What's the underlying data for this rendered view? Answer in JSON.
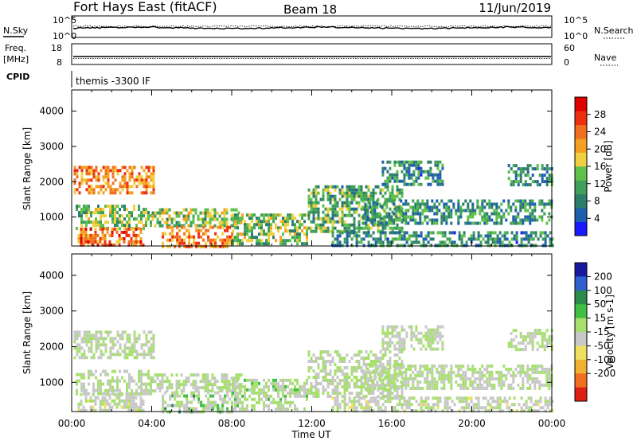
{
  "header": {
    "station": "Fort Hays East (fitACF)",
    "beam": "Beam 18",
    "date": "11/Jun/2019"
  },
  "noise_panel": {
    "left_label": "N.Sky",
    "right_label": "N.Search",
    "left_ticks": [
      "10^5",
      "10^0"
    ],
    "right_ticks": [
      "10^5",
      "10^0"
    ]
  },
  "freq_panel": {
    "left_label_1": "Freq.",
    "left_label_2": "[MHz]",
    "right_label": "Nave",
    "left_ticks": [
      "18",
      "8"
    ],
    "right_ticks": [
      "60",
      "0"
    ]
  },
  "cpid_panel": {
    "label": "CPID",
    "program": "themis -3300 IF"
  },
  "x_axis": {
    "label": "Time UT",
    "ticks": [
      "00:00",
      "04:00",
      "08:00",
      "12:00",
      "16:00",
      "20:00",
      "00:00"
    ]
  },
  "chart_data": [
    {
      "type": "heatmap",
      "title": "",
      "xlabel": "Time UT",
      "ylabel": "Slant Range [km]",
      "x_range_hours": [
        0,
        24
      ],
      "ylim": [
        180,
        4600
      ],
      "y_ticks": [
        1000,
        2000,
        3000,
        4000
      ],
      "colorbar": {
        "label": "Power [dB]",
        "ticks": [
          "4",
          "8",
          "12",
          "16",
          "20",
          "24",
          "28"
        ],
        "colors": [
          "#1a1aff",
          "#1e5fae",
          "#2c7d6a",
          "#3fa05a",
          "#5fc04a",
          "#f0d040",
          "#f5a020",
          "#f07020",
          "#ee3010",
          "#e00000"
        ]
      },
      "echo_regions": [
        {
          "t0": 0.1,
          "t1": 4.1,
          "r0": 1700,
          "r1": 2450,
          "value": 22
        },
        {
          "t0": 0.2,
          "t1": 4.0,
          "r0": 700,
          "r1": 1350,
          "value": 14
        },
        {
          "t0": 0.3,
          "t1": 3.6,
          "r0": 200,
          "r1": 700,
          "value": 24
        },
        {
          "t0": 4.0,
          "t1": 8.5,
          "r0": 750,
          "r1": 1250,
          "value": 15
        },
        {
          "t0": 4.5,
          "t1": 8.0,
          "r0": 200,
          "r1": 750,
          "value": 22
        },
        {
          "t0": 8.0,
          "t1": 11.8,
          "r0": 250,
          "r1": 1100,
          "value": 14
        },
        {
          "t0": 11.8,
          "t1": 16.5,
          "r0": 600,
          "r1": 1900,
          "value": 12
        },
        {
          "t0": 14.5,
          "t1": 24.0,
          "r0": 800,
          "r1": 1500,
          "value": 10
        },
        {
          "t0": 13.0,
          "t1": 24.0,
          "r0": 200,
          "r1": 600,
          "value": 9
        },
        {
          "t0": 15.5,
          "t1": 18.5,
          "r0": 1900,
          "r1": 2600,
          "value": 9
        },
        {
          "t0": 21.8,
          "t1": 24.0,
          "r0": 1900,
          "r1": 2500,
          "value": 10
        }
      ]
    },
    {
      "type": "heatmap",
      "title": "",
      "xlabel": "Time UT",
      "ylabel": "Slant Range [km]",
      "x_range_hours": [
        0,
        24
      ],
      "ylim": [
        180,
        4600
      ],
      "y_ticks": [
        1000,
        2000,
        3000,
        4000
      ],
      "colorbar": {
        "label": "Velocity [m s-1]",
        "ticks": [
          "200",
          "100",
          "50",
          "15",
          "-15",
          "-50",
          "-100",
          "-200"
        ],
        "colors": [
          "#1a1aa0",
          "#3060d0",
          "#2c8a4a",
          "#40c040",
          "#a8e070",
          "#c8c8c8",
          "#f0e060",
          "#f0b030",
          "#f07020",
          "#e02010"
        ]
      },
      "echo_regions": [
        {
          "t0": 0.1,
          "t1": 4.1,
          "r0": 1700,
          "r1": 2450,
          "value": 0
        },
        {
          "t0": 0.2,
          "t1": 4.0,
          "r0": 700,
          "r1": 1350,
          "value": 0
        },
        {
          "t0": 0.3,
          "t1": 3.6,
          "r0": 200,
          "r1": 700,
          "value": -40
        },
        {
          "t0": 4.0,
          "t1": 8.5,
          "r0": 750,
          "r1": 1250,
          "value": 0
        },
        {
          "t0": 4.5,
          "t1": 8.0,
          "r0": 200,
          "r1": 750,
          "value": 80
        },
        {
          "t0": 8.0,
          "t1": 11.8,
          "r0": 250,
          "r1": 1100,
          "value": 40
        },
        {
          "t0": 11.8,
          "t1": 16.5,
          "r0": 600,
          "r1": 1900,
          "value": 0
        },
        {
          "t0": 14.5,
          "t1": 24.0,
          "r0": 800,
          "r1": 1500,
          "value": 0
        },
        {
          "t0": 13.0,
          "t1": 24.0,
          "r0": 200,
          "r1": 600,
          "value": -30
        },
        {
          "t0": 15.5,
          "t1": 18.5,
          "r0": 1900,
          "r1": 2600,
          "value": 0
        },
        {
          "t0": 21.8,
          "t1": 24.0,
          "r0": 1900,
          "r1": 2500,
          "value": 0
        }
      ]
    }
  ]
}
